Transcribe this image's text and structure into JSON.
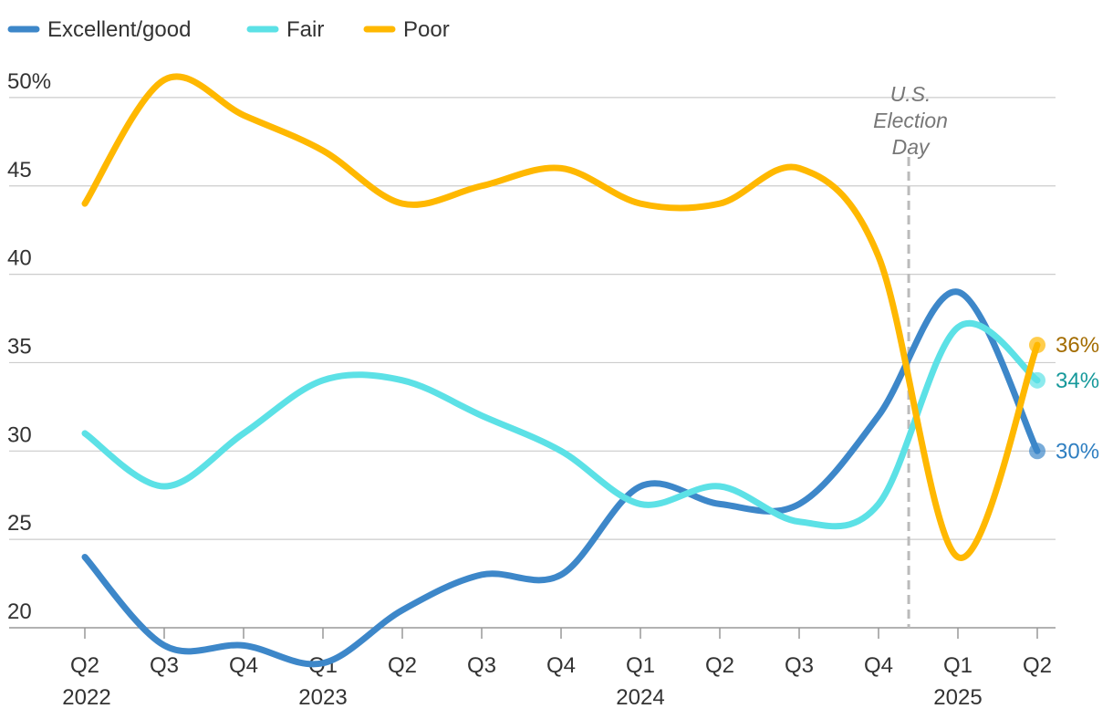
{
  "chart_data": {
    "type": "line",
    "title": "",
    "xlabel": "",
    "ylabel": "",
    "ylim": [
      20,
      50
    ],
    "y_ticks": [
      "50%",
      "45",
      "40",
      "35",
      "30",
      "25",
      "20"
    ],
    "y_tick_values": [
      50,
      45,
      40,
      35,
      30,
      25,
      20
    ],
    "grid": true,
    "legend_placement": "top-left",
    "categories": [
      "Q2 2022",
      "Q3 2022",
      "Q4 2022",
      "Q1 2023",
      "Q2 2023",
      "Q3 2023",
      "Q4 2023",
      "Q1 2024",
      "Q2 2024",
      "Q3 2024",
      "Q4 2024",
      "Q1 2025",
      "Q2 2025"
    ],
    "x_tick_labels": [
      "Q2",
      "Q3",
      "Q4",
      "Q1",
      "Q2",
      "Q3",
      "Q4",
      "Q1",
      "Q2",
      "Q3",
      "Q4",
      "Q1",
      "Q2"
    ],
    "x_year_labels": [
      {
        "index": 0,
        "label": "2022"
      },
      {
        "index": 3,
        "label": "2023"
      },
      {
        "index": 7,
        "label": "2024"
      },
      {
        "index": 11,
        "label": "2025"
      }
    ],
    "series": [
      {
        "name": "Excellent/good",
        "color": "#3d87c9",
        "label_color": "#2f7fc1",
        "end_label": "30%",
        "values": [
          24,
          19,
          19,
          18,
          21,
          23,
          23,
          28,
          27,
          27,
          32,
          39,
          30
        ]
      },
      {
        "name": "Fair",
        "color": "#5ce1e6",
        "label_color": "#17999b",
        "end_label": "34%",
        "values": [
          31,
          28,
          31,
          34,
          34,
          32,
          30,
          27,
          28,
          26,
          27,
          37,
          34
        ]
      },
      {
        "name": "Poor",
        "color": "#ffb800",
        "label_color": "#a36c00",
        "end_label": "36%",
        "values": [
          44,
          51,
          49,
          47,
          44,
          45,
          46,
          44,
          44,
          46,
          41,
          24,
          36
        ]
      }
    ],
    "annotation": {
      "lines": [
        "U.S.",
        "Election",
        "Day"
      ],
      "position_index": 10.38
    }
  }
}
